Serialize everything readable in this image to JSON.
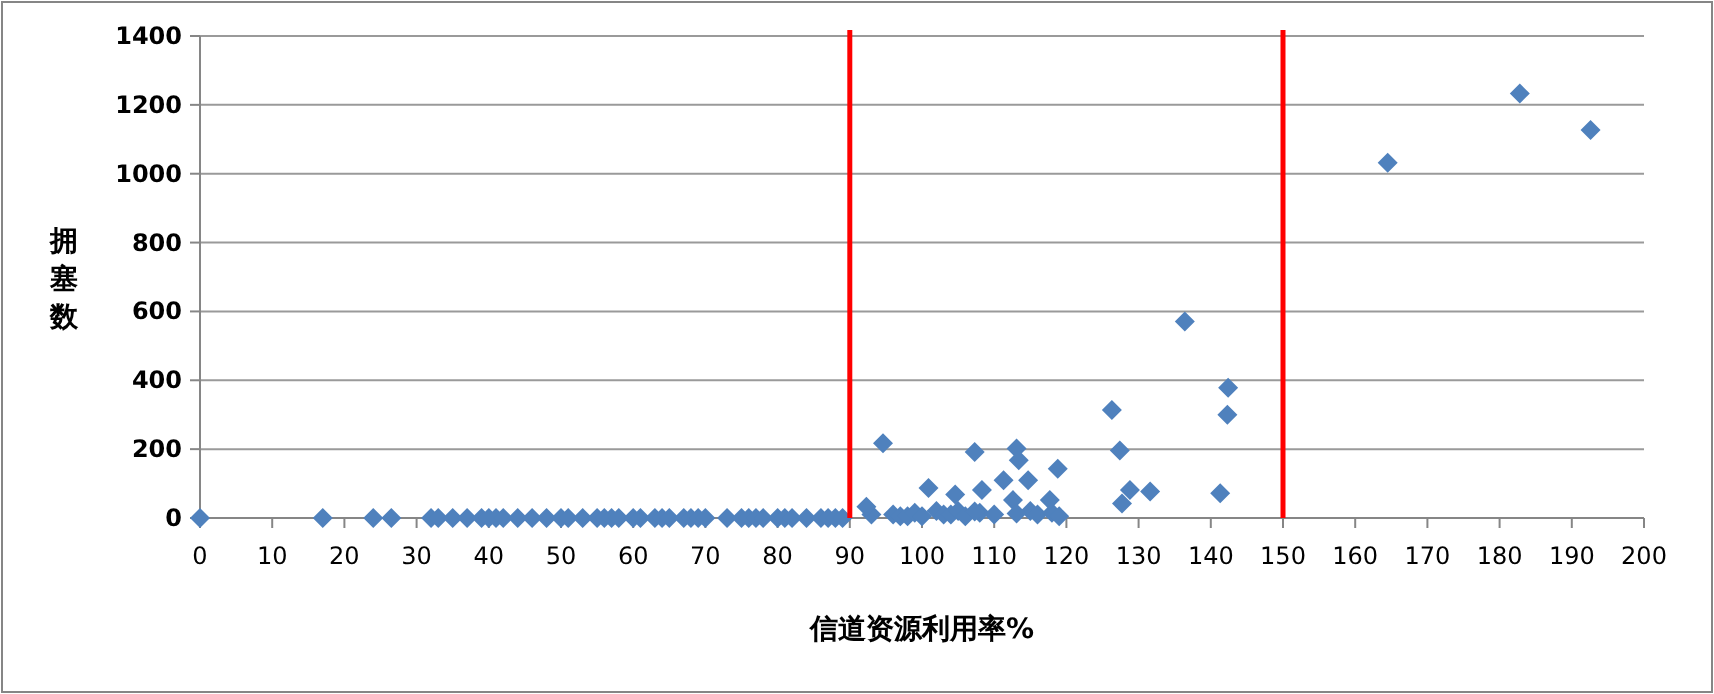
{
  "chart_data": {
    "type": "scatter",
    "xlabel": "信道资源利用率%",
    "ylabel": "拥塞数",
    "marker": "diamond",
    "grid": "y",
    "xlim": [
      0,
      200
    ],
    "xticks": [
      0,
      10,
      20,
      30,
      40,
      50,
      60,
      70,
      80,
      90,
      100,
      110,
      120,
      130,
      140,
      150,
      160,
      170,
      180,
      190,
      200
    ],
    "ylim": [
      0,
      1400
    ],
    "yticks": [
      0,
      200,
      400,
      600,
      800,
      1000,
      1200,
      1400
    ],
    "ref_lines": [
      {
        "axis": "x",
        "value": 90,
        "color": "#ff0000"
      },
      {
        "axis": "x",
        "value": 150,
        "color": "#ff0000"
      }
    ],
    "series": [
      {
        "color": "#4f81bd",
        "x": [
          0,
          17,
          24,
          26.5,
          32,
          33,
          35,
          37,
          39,
          40,
          41,
          42,
          44,
          46,
          48,
          50,
          51,
          53,
          55,
          56,
          57,
          58,
          60,
          61,
          63,
          64,
          65,
          67,
          68,
          69,
          70,
          73,
          75,
          76,
          77,
          78,
          80,
          81,
          82,
          84,
          86,
          87,
          88,
          89,
          93,
          96,
          97,
          98,
          99,
          100,
          102,
          103,
          104,
          105,
          106,
          108,
          110,
          115,
          116,
          118,
          119,
          92.3,
          94.6,
          100.9,
          104.6,
          107.3,
          107.3,
          108.3,
          111.3,
          112.6,
          113.1,
          113.1,
          113.4,
          114.7,
          117.7,
          118.8,
          126.3,
          127.4,
          127.7,
          128.8,
          131.6,
          136.4,
          141.3,
          142.3,
          142.4,
          164.5,
          182.8,
          192.6
        ],
        "values": [
          0,
          0,
          0,
          0,
          0,
          0,
          0,
          0,
          0,
          0,
          0,
          0,
          0,
          0,
          0,
          0,
          0,
          0,
          0,
          0,
          0,
          0,
          0,
          0,
          0,
          0,
          0,
          0,
          0,
          0,
          0,
          0,
          0,
          0,
          0,
          0,
          0,
          0,
          0,
          0,
          0,
          0,
          0,
          0,
          10,
          10,
          5,
          5,
          15,
          5,
          20,
          10,
          10,
          20,
          5,
          15,
          10,
          20,
          10,
          15,
          5,
          33,
          217,
          87,
          68,
          192,
          19,
          81,
          110,
          52,
          202,
          13,
          168,
          110,
          52,
          143,
          314,
          196,
          42,
          81,
          77,
          571,
          72,
          300,
          378,
          1032,
          1233,
          1127
        ]
      }
    ]
  }
}
